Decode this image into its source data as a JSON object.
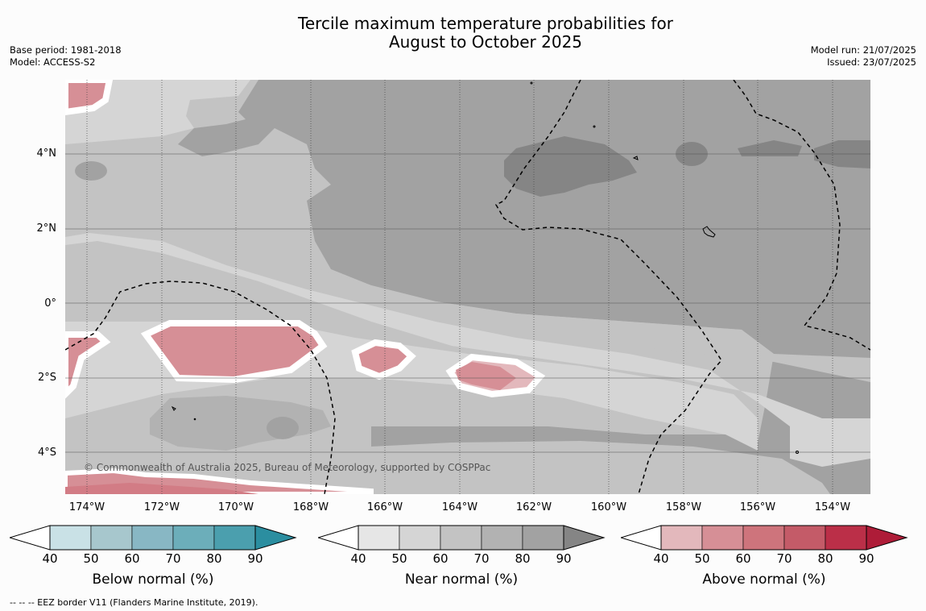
{
  "title": {
    "line1": "Tercile maximum temperature probabilities for",
    "line2": "August to October 2025"
  },
  "meta": {
    "base_period": "Base period: 1981-2018",
    "model": "Model: ACCESS-S2",
    "model_run": "Model run: 21/07/2025",
    "issued": "Issued: 23/07/2025"
  },
  "map": {
    "lat_labels": [
      "4°N",
      "2°N",
      "0°",
      "2°S",
      "4°S"
    ],
    "lon_labels": [
      "174°W",
      "172°W",
      "170°W",
      "168°W",
      "166°W",
      "164°W",
      "162°W",
      "160°W",
      "158°W",
      "156°W",
      "154°W"
    ],
    "copyright": "© Commonwealth of Australia 2025, Bureau of Meteorology, supported by COSPPac",
    "colors": {
      "near_40": "#e6e6e6",
      "near_50": "#d5d5d5",
      "near_60": "#c3c3c3",
      "near_70": "#b2b2b2",
      "near_80": "#a2a2a2",
      "near_90": "#858585",
      "above_50": "#d68f96",
      "above_60": "#d27c85",
      "above_40": "#e3b8bc"
    }
  },
  "colorbars": [
    {
      "name": "below",
      "title": "Below normal (%)",
      "ticks": [
        "40",
        "50",
        "60",
        "70",
        "80",
        "90"
      ],
      "colors": [
        "#c9e1e6",
        "#a7c7cd",
        "#88b7c4",
        "#6caeba",
        "#4b9fae",
        "#2b8ea0"
      ]
    },
    {
      "name": "near",
      "title": "Near normal (%)",
      "ticks": [
        "40",
        "50",
        "60",
        "70",
        "80",
        "90"
      ],
      "colors": [
        "#e6e6e6",
        "#d5d5d5",
        "#c3c3c3",
        "#b2b2b2",
        "#a2a2a2",
        "#858585"
      ]
    },
    {
      "name": "above",
      "title": "Above normal (%)",
      "ticks": [
        "40",
        "50",
        "60",
        "70",
        "80",
        "90"
      ],
      "colors": [
        "#e3b8bc",
        "#d68f96",
        "#ce747c",
        "#c45b68",
        "#bb2f48",
        "#ae1c38"
      ]
    }
  ],
  "footnote": "--  --  -- EEZ border V11 (Flanders Marine Institute, 2019)."
}
